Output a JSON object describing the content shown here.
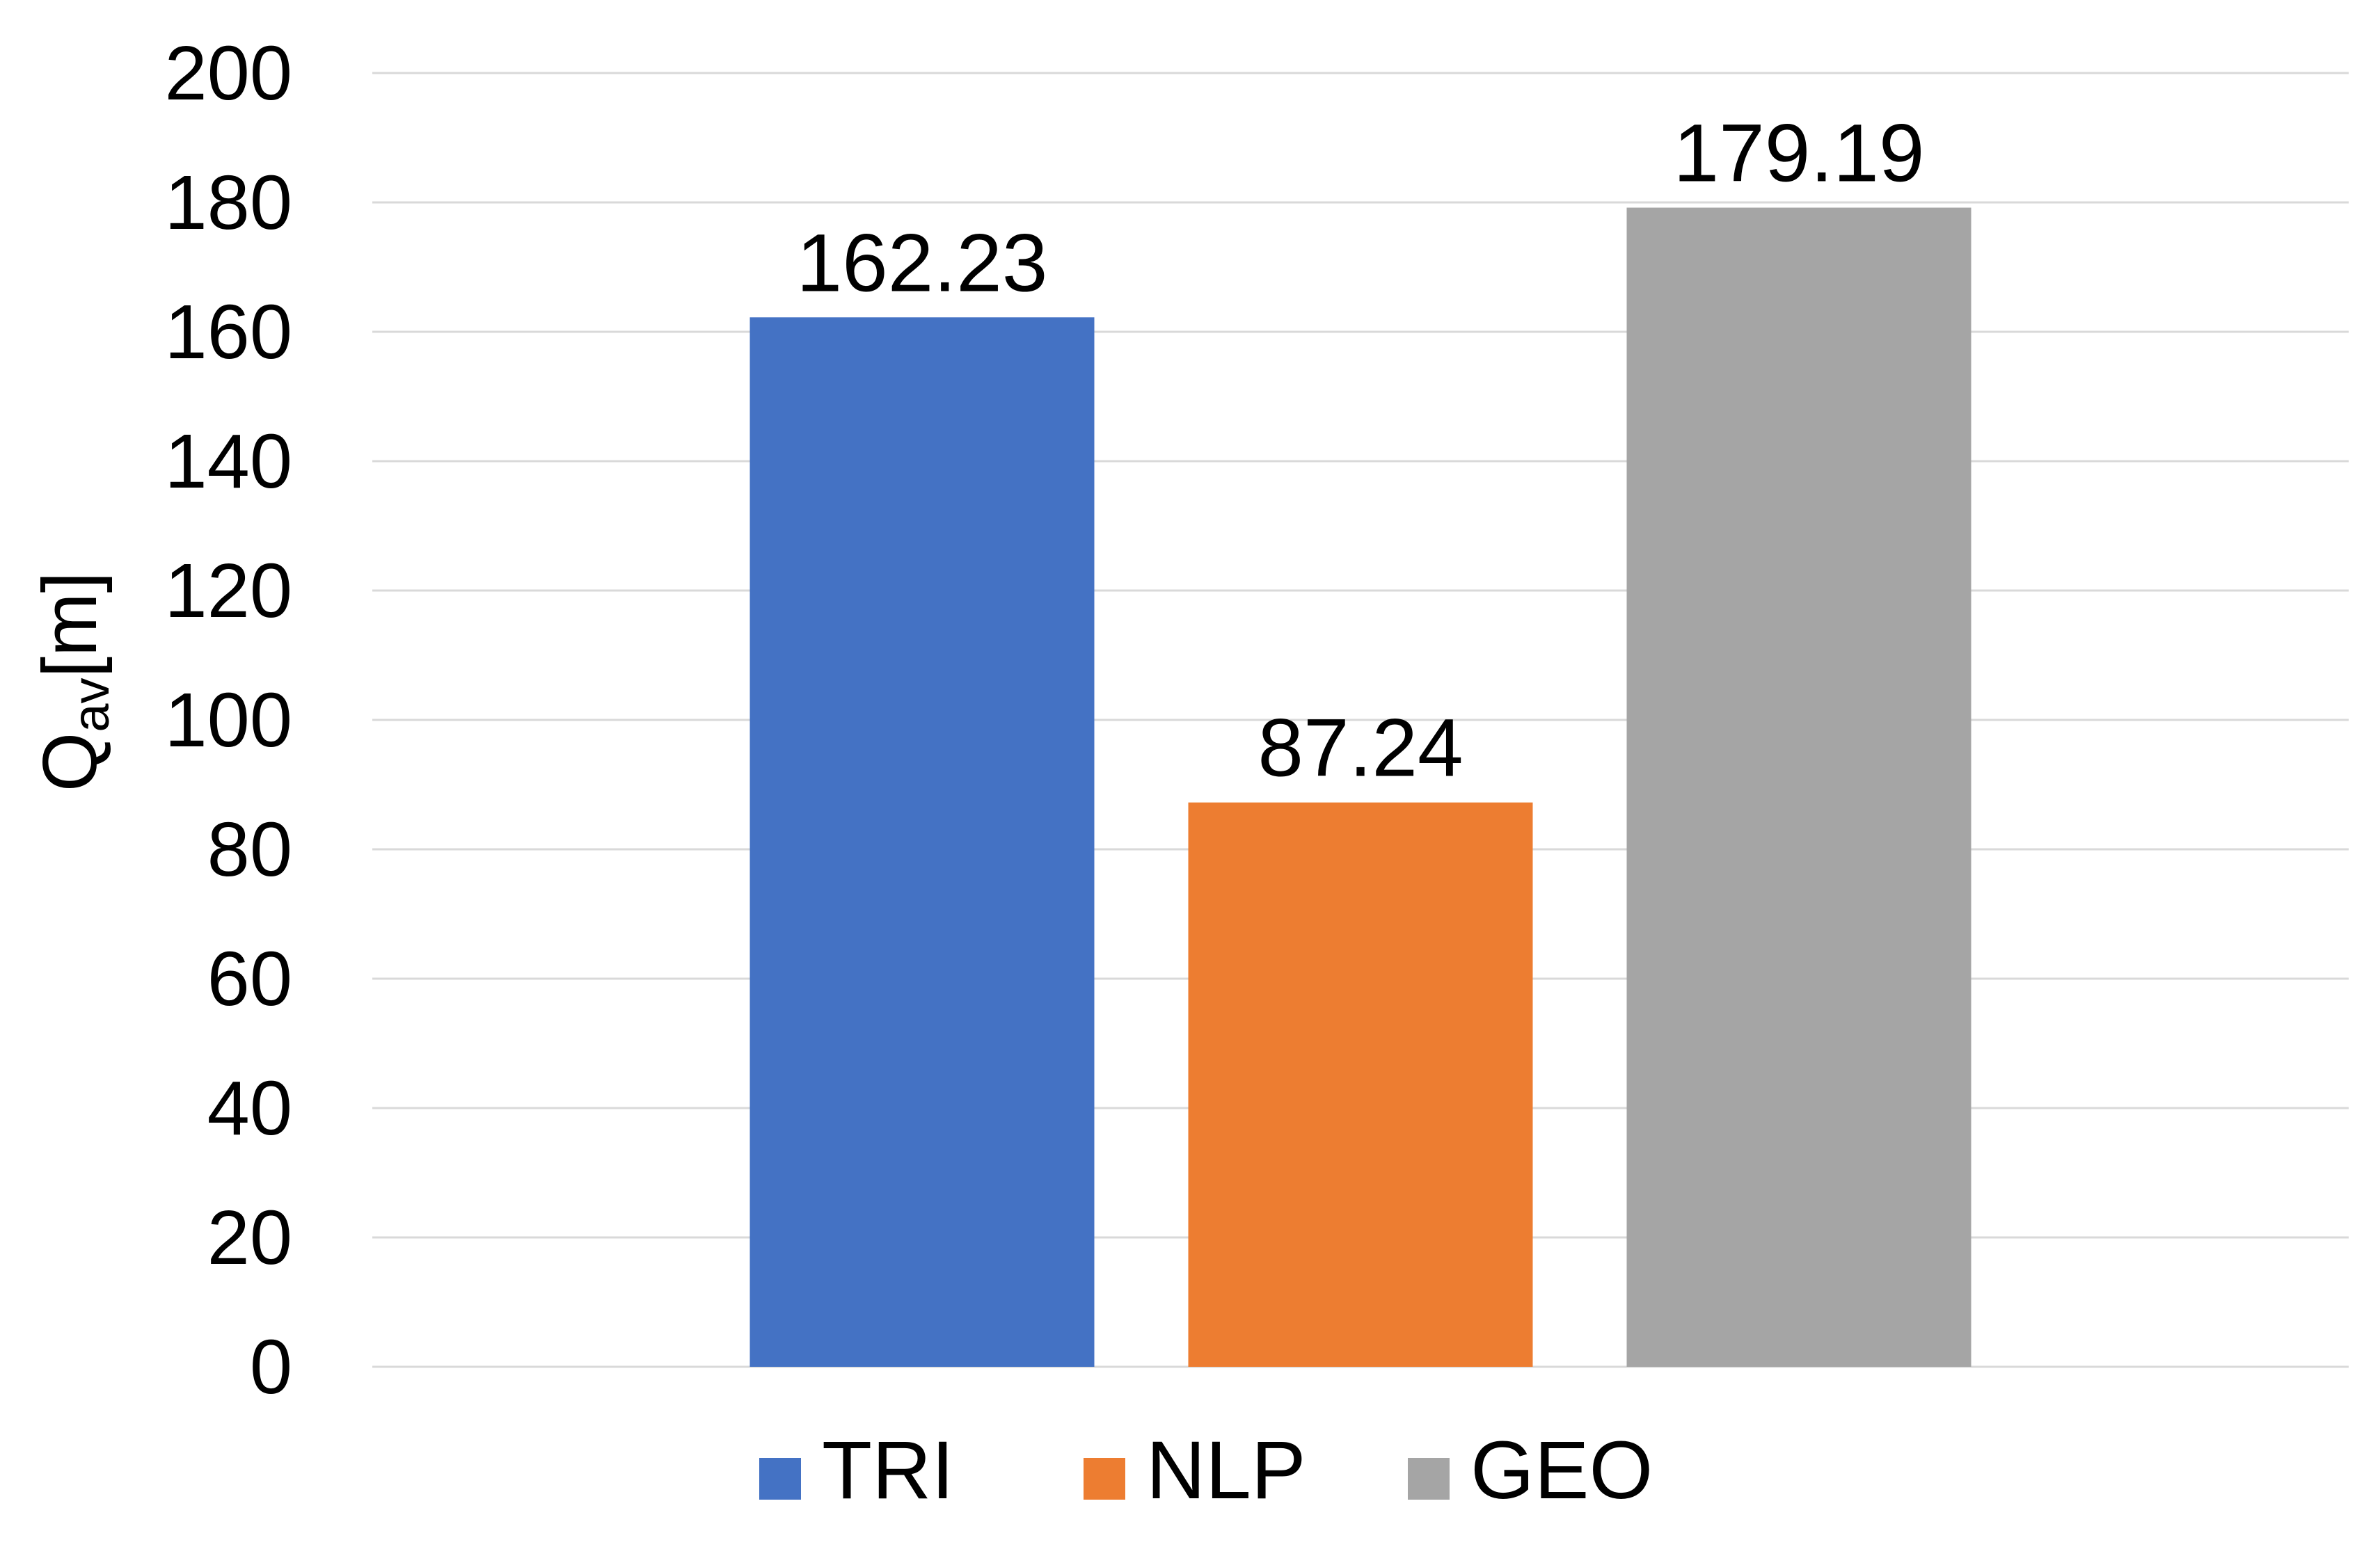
{
  "chart_data": {
    "type": "bar",
    "categories": [
      "TRI",
      "NLP",
      "GEO"
    ],
    "values": [
      162.23,
      87.24,
      179.19
    ],
    "data_labels": [
      "162.23",
      "87.24",
      "179.19"
    ],
    "colors": [
      "#4472C4",
      "#ED7D31",
      "#A5A5A5"
    ],
    "title": "",
    "xlabel": "",
    "ylabel": {
      "base": "Q",
      "subscript": "av",
      "suffix": "[m]"
    },
    "ylim": [
      0,
      200
    ],
    "yticks": [
      "0",
      "20",
      "40",
      "60",
      "80",
      "100",
      "120",
      "140",
      "160",
      "180",
      "200"
    ],
    "grid": true,
    "legend": {
      "position": "bottom",
      "entries": [
        "TRI",
        "NLP",
        "GEO"
      ]
    }
  }
}
